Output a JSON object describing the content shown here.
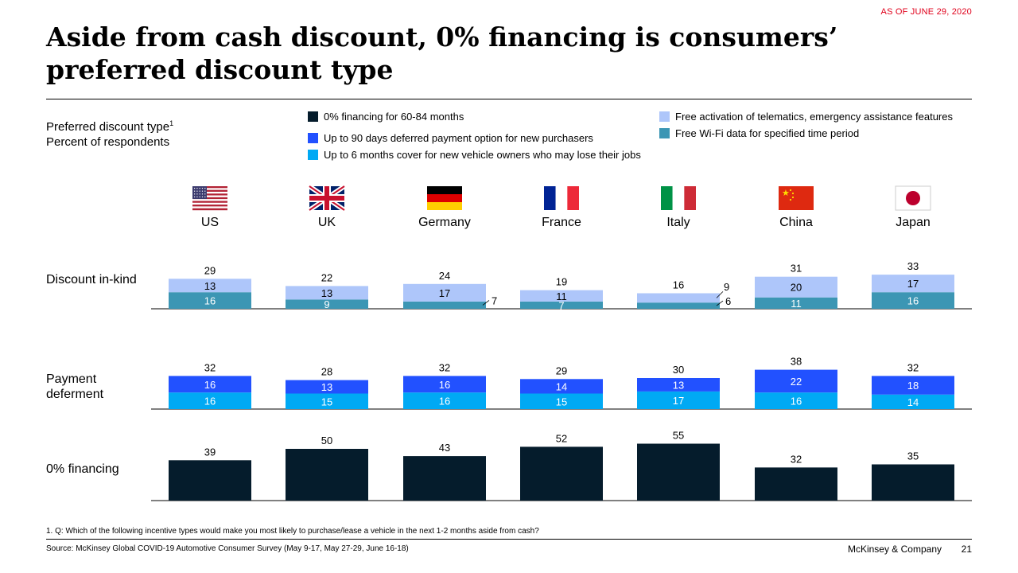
{
  "as_of": "AS OF JUNE 29, 2020",
  "title": "Aside from cash discount, 0% financing is consumers’ preferred discount type",
  "subtitle": {
    "line1": "Preferred discount type",
    "sup": "1",
    "line2": "Percent of respondents"
  },
  "legend": [
    {
      "label": "0% financing for 60-84 months",
      "color": "#051c2c"
    },
    {
      "label": "Up to 90 days deferred payment option for new purchasers",
      "color": "#2251ff"
    },
    {
      "label": "Up to 6 months cover for new vehicle owners who may lose their jobs",
      "color": "#00a9f4"
    },
    {
      "label": "Free activation of telematics, emergency assistance features",
      "color": "#aec6fa"
    },
    {
      "label": "Free Wi-Fi data for specified time period",
      "color": "#3c96b4"
    }
  ],
  "row_labels": {
    "inkind": "Discount in-kind",
    "deferment_1": "Payment",
    "deferment_2": "deferment",
    "financing": "0% financing"
  },
  "chart_data": {
    "type": "bar",
    "categories": [
      "US",
      "UK",
      "Germany",
      "France",
      "Italy",
      "China",
      "Japan"
    ],
    "flags": [
      "us-flag",
      "uk-flag",
      "germany-flag",
      "france-flag",
      "italy-flag",
      "china-flag",
      "japan-flag"
    ],
    "panels": [
      {
        "name": "Discount in-kind",
        "totals": [
          29,
          22,
          24,
          19,
          16,
          31,
          33
        ],
        "series": [
          {
            "name": "Free Wi-Fi data for specified time period",
            "color": "#3c96b4",
            "values": [
              16,
              9,
              7,
              7,
              6,
              11,
              16
            ]
          },
          {
            "name": "Free activation of telematics, emergency assistance features",
            "color": "#aec6fa",
            "values": [
              13,
              13,
              17,
              11,
              9,
              20,
              17
            ]
          }
        ]
      },
      {
        "name": "Payment deferment",
        "totals": [
          32,
          28,
          32,
          29,
          30,
          38,
          32
        ],
        "series": [
          {
            "name": "Up to 6 months cover for new vehicle owners who may lose their jobs",
            "color": "#00a9f4",
            "values": [
              16,
              15,
              16,
              15,
              17,
              16,
              14
            ]
          },
          {
            "name": "Up to 90 days deferred payment option for new purchasers",
            "color": "#2251ff",
            "values": [
              16,
              13,
              16,
              14,
              13,
              22,
              18
            ]
          }
        ]
      },
      {
        "name": "0% financing",
        "totals": [
          39,
          50,
          43,
          52,
          55,
          32,
          35
        ],
        "series": [
          {
            "name": "0% financing for 60-84 months",
            "color": "#051c2c",
            "values": [
              39,
              50,
              43,
              52,
              55,
              32,
              35
            ]
          }
        ]
      }
    ]
  },
  "footnote": "1.    Q: Which of the following incentive types would make you most likely to purchase/lease a vehicle in the next 1-2 months aside from cash?",
  "source": "Source: McKinsey Global COVID-19 Automotive Consumer Survey (May 9-17, May 27-29, June 16-18)",
  "brand": "McKinsey & Company",
  "page": "21"
}
